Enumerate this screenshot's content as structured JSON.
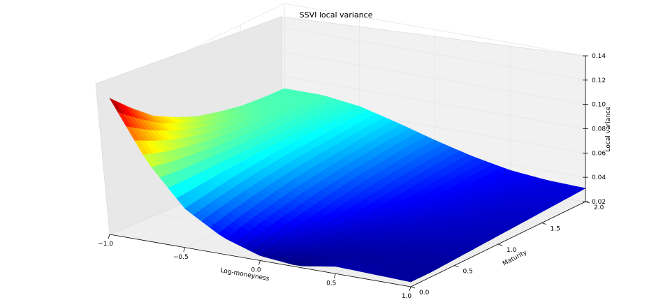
{
  "chart_data": {
    "type": "surface3d",
    "title": "SSVI local variance",
    "xlabel": "Log-moneyness",
    "ylabel": "Maturity",
    "zlabel": "Local variance",
    "xlim": [
      -1.0,
      1.0
    ],
    "ylim": [
      0.0,
      2.0
    ],
    "zlim": [
      0.02,
      0.14
    ],
    "x_ticks": [
      "−1.0",
      "−0.5",
      "0.0",
      "0.5",
      "1.0"
    ],
    "y_ticks": [
      "0.0",
      "0.5",
      "1.0",
      "1.5",
      "2.0"
    ],
    "z_ticks": [
      "0.02",
      "0.04",
      "0.06",
      "0.08",
      "0.10",
      "0.12",
      "0.14"
    ],
    "colormap": "jet",
    "x": [
      -1.0,
      -0.75,
      -0.5,
      -0.25,
      0.0,
      0.25,
      0.5,
      0.75,
      1.0
    ],
    "y": [
      0.0,
      0.25,
      0.5,
      0.75,
      1.0,
      1.25,
      1.5,
      1.75,
      2.0
    ],
    "z": [
      [
        0.132,
        0.085,
        0.052,
        0.034,
        0.024,
        0.021,
        0.026,
        0.025,
        0.024
      ],
      [
        0.115,
        0.08,
        0.055,
        0.04,
        0.03,
        0.025,
        0.024,
        0.024,
        0.024
      ],
      [
        0.1,
        0.077,
        0.058,
        0.044,
        0.034,
        0.028,
        0.026,
        0.025,
        0.025
      ],
      [
        0.09,
        0.074,
        0.06,
        0.048,
        0.038,
        0.031,
        0.028,
        0.027,
        0.026
      ],
      [
        0.082,
        0.072,
        0.062,
        0.051,
        0.041,
        0.034,
        0.03,
        0.028,
        0.027
      ],
      [
        0.077,
        0.071,
        0.063,
        0.053,
        0.044,
        0.036,
        0.032,
        0.029,
        0.028
      ],
      [
        0.073,
        0.07,
        0.064,
        0.055,
        0.046,
        0.038,
        0.033,
        0.03,
        0.029
      ],
      [
        0.071,
        0.07,
        0.065,
        0.057,
        0.048,
        0.04,
        0.034,
        0.031,
        0.03
      ],
      [
        0.07,
        0.07,
        0.066,
        0.058,
        0.049,
        0.041,
        0.035,
        0.032,
        0.031
      ]
    ]
  }
}
